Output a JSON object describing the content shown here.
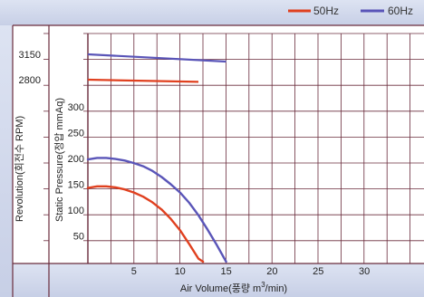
{
  "chart_data": {
    "type": "line",
    "legend": {
      "placement": "top-right",
      "items": [
        "50Hz",
        "60Hz"
      ]
    },
    "colors": {
      "50Hz": "#e0401f",
      "60Hz": "#5a55b8",
      "grid": "#6a2c3c",
      "band": "#c9d2e8"
    },
    "x_axis": {
      "label_prefix": "Air Volume(풍량 m",
      "label_sup": "3",
      "label_suffix": "/min)",
      "range": [
        0,
        35
      ],
      "ticks": [
        "5",
        "10",
        "15",
        "20",
        "25",
        "30"
      ]
    },
    "pressure_axis": {
      "label": "Static Pressure(정압 mmAq)",
      "range": [
        0,
        350
      ],
      "ticks": [
        "50",
        "100",
        "150",
        "200",
        "250",
        "300"
      ]
    },
    "revolution_axis": {
      "label": "Revolution(회전수 RPM)",
      "ticks": [
        "3150",
        "2800"
      ]
    },
    "revolution_series": [
      {
        "name": "60Hz",
        "x": [
          0,
          15
        ],
        "rpm": [
          3150,
          3050
        ]
      },
      {
        "name": "50Hz",
        "x": [
          0,
          12
        ],
        "rpm": [
          2800,
          2770
        ]
      }
    ],
    "pressure_series": [
      {
        "name": "60Hz",
        "x": [
          0,
          1,
          2,
          3,
          4,
          5,
          6,
          7,
          8,
          9,
          10,
          11,
          12,
          13,
          14,
          15
        ],
        "y": [
          198,
          201,
          201,
          199,
          196,
          191,
          185,
          176,
          164,
          150,
          134,
          114,
          90,
          62,
          32,
          0
        ]
      },
      {
        "name": "50Hz",
        "x": [
          0,
          1,
          2,
          3,
          4,
          5,
          6,
          7,
          8,
          9,
          10,
          11,
          12,
          12.5
        ],
        "y": [
          143,
          146,
          146,
          144,
          140,
          134,
          126,
          115,
          101,
          83,
          61,
          34,
          6,
          0
        ]
      }
    ]
  }
}
